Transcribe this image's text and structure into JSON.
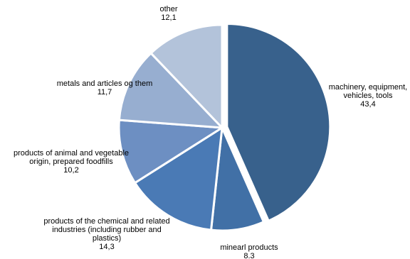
{
  "chart_data": {
    "type": "pie",
    "title": "",
    "slices": [
      {
        "label": [
          "machinery, equipment,",
          "vehicles, tools"
        ],
        "value_text": "43,4",
        "value": 43.4,
        "color": "#38618c"
      },
      {
        "label": [
          "minearl products"
        ],
        "value_text": "8.3",
        "value": 8.3,
        "color": "#4170a6"
      },
      {
        "label": [
          "products of the chemical and related",
          "industries (including rubber and",
          "plastics)"
        ],
        "value_text": "14,3",
        "value": 14.3,
        "color": "#4a7ab5"
      },
      {
        "label": [
          "products of animal and vegetable",
          "origin, prepared foodfills"
        ],
        "value_text": "10,2",
        "value": 10.2,
        "color": "#6d8fc2"
      },
      {
        "label": [
          "metals and articles og them"
        ],
        "value_text": "11,7",
        "value": 11.7,
        "color": "#97aed0"
      },
      {
        "label": [
          "other"
        ],
        "value_text": "12,1",
        "value": 12.1,
        "color": "#b3c3da"
      }
    ],
    "legend": "none",
    "start": "top, clockwise",
    "exploded_slice": "machinery, equipment, vehicles, tools"
  }
}
